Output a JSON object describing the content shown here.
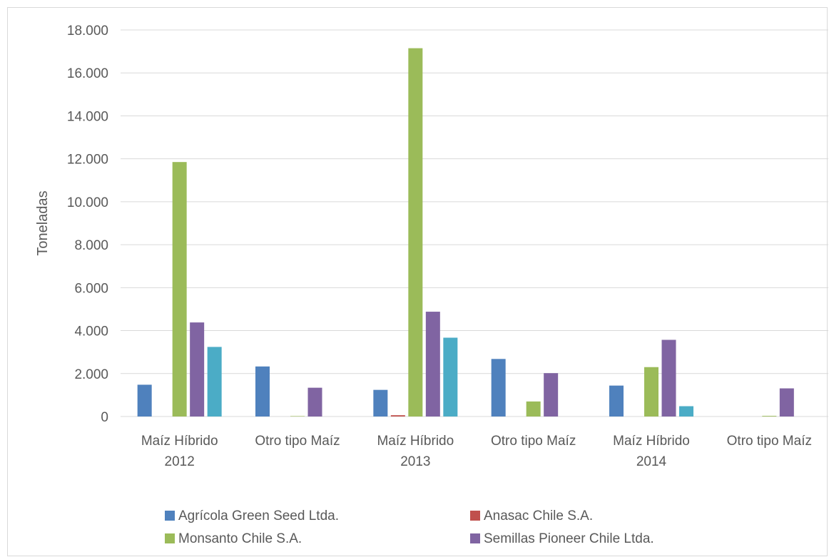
{
  "chart_data": {
    "type": "bar",
    "categories": [
      [
        "Maíz Híbrido",
        "2012"
      ],
      [
        "Otro tipo Maíz",
        ""
      ],
      [
        "Maíz Híbrido",
        "2013"
      ],
      [
        "Otro tipo Maíz",
        ""
      ],
      [
        "Maíz Híbrido",
        "2014"
      ],
      [
        "Otro tipo Maíz",
        ""
      ]
    ],
    "ylabel": "Toneladas",
    "ylim": [
      0,
      18000
    ],
    "yticks": [
      "0",
      "2.000",
      "4.000",
      "6.000",
      "8.000",
      "10.000",
      "12.000",
      "14.000",
      "16.000",
      "18.000"
    ],
    "grid": true,
    "legend_position": "bottom",
    "series": [
      {
        "name": "Agrícola Green Seed Ltda.",
        "color": "#4f81bd",
        "values": [
          1480,
          2330,
          1240,
          2680,
          1440,
          0
        ]
      },
      {
        "name": "Anasac Chile S.A.",
        "color": "#c0504d",
        "values": [
          0,
          0,
          60,
          0,
          0,
          0
        ]
      },
      {
        "name": "Monsanto Chile S.A.",
        "color": "#9bbb59",
        "values": [
          11850,
          20,
          17150,
          700,
          2300,
          30
        ]
      },
      {
        "name": "Semillas Pioneer Chile Ltda.",
        "color": "#8064a2",
        "values": [
          4380,
          1340,
          4880,
          2020,
          3570,
          1310
        ]
      },
      {
        "name": "",
        "color": "#4bacc6",
        "values": [
          3240,
          0,
          3670,
          0,
          480,
          0
        ]
      }
    ]
  }
}
